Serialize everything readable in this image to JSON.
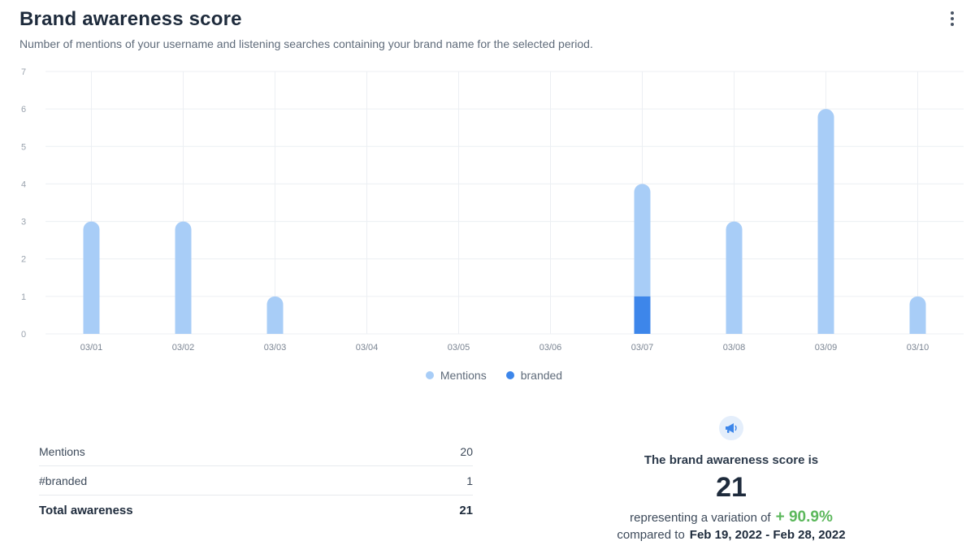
{
  "header": {
    "title": "Brand awareness score",
    "subtitle": "Number of mentions of your username and listening searches containing your brand name for the selected period."
  },
  "icons": {
    "menu": "more-vertical-icon",
    "summary": "megaphone-icon"
  },
  "colors": {
    "mentions": "#a8cdf7",
    "branded": "#3d86ea",
    "positive": "#5cb85c",
    "grid": "#eceff3"
  },
  "chart_data": {
    "type": "bar",
    "stacked": true,
    "categories": [
      "03/01",
      "03/02",
      "03/03",
      "03/04",
      "03/05",
      "03/06",
      "03/07",
      "03/08",
      "03/09",
      "03/10"
    ],
    "series": [
      {
        "name": "Mentions",
        "values": [
          3,
          3,
          1,
          0,
          0,
          0,
          3,
          3,
          6,
          1
        ]
      },
      {
        "name": "branded",
        "values": [
          0,
          0,
          0,
          0,
          0,
          0,
          1,
          0,
          0,
          0
        ]
      }
    ],
    "yticks": [
      0,
      1,
      2,
      3,
      4,
      5,
      6,
      7
    ],
    "ylim": [
      0,
      7
    ],
    "grid": true,
    "legend": "bottom-center"
  },
  "legend": {
    "mentions": "Mentions",
    "branded": "branded"
  },
  "stats": {
    "rows": [
      {
        "label": "Mentions",
        "value": "20"
      },
      {
        "label": "#branded",
        "value": "1"
      }
    ],
    "total": {
      "label": "Total awareness",
      "value": "21"
    }
  },
  "summary": {
    "label": "The brand awareness score is",
    "score": "21",
    "variation_prefix": "representing a variation of",
    "variation": "+ 90.9%",
    "compare_prefix": "compared to",
    "period": "Feb 19, 2022 - Feb 28, 2022"
  }
}
